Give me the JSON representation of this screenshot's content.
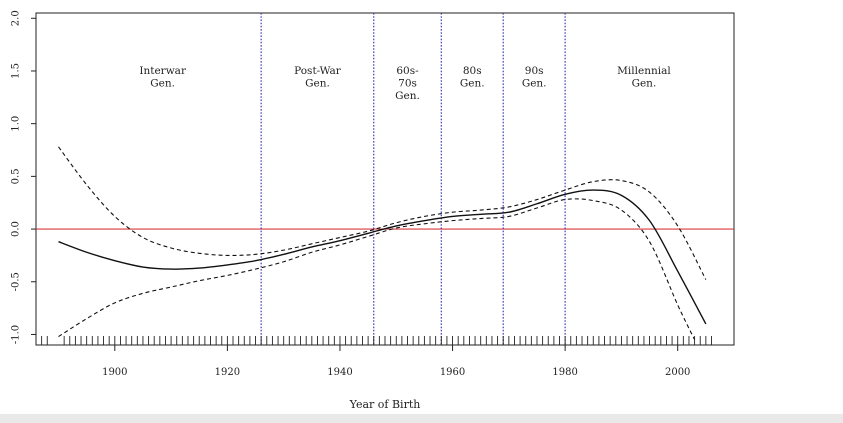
{
  "chart_data": {
    "type": "line",
    "xlabel": "Year of Birth",
    "ylabel": "",
    "xlim": [
      1886,
      2010
    ],
    "ylim": [
      -1.1,
      2.05
    ],
    "x_ticks": [
      1900,
      1920,
      1940,
      1960,
      1980,
      2000
    ],
    "y_ticks": [
      -1.0,
      -0.5,
      0.0,
      0.5,
      1.0,
      1.5,
      2.0
    ],
    "x_tick_labels": [
      "1900",
      "1920",
      "1940",
      "1960",
      "1980",
      "2000"
    ],
    "y_tick_labels": [
      "-1.0",
      "-0.5",
      "0.0",
      "0.5",
      "1.0",
      "1.5",
      "2.0"
    ],
    "reference_line": {
      "y": 0.0,
      "color": "#d93a3a"
    },
    "generation_boundaries": [
      1926,
      1946,
      1958,
      1969,
      1980
    ],
    "boundary_color": "#3f3fb8",
    "generations": [
      {
        "label": [
          "Interwar",
          "Gen."
        ],
        "x": 1908.5
      },
      {
        "label": [
          "Post-War",
          "Gen."
        ],
        "x": 1936
      },
      {
        "label": [
          "60s-",
          "70s",
          "Gen."
        ],
        "x": 1952
      },
      {
        "label": [
          "80s",
          "Gen."
        ],
        "x": 1963.5
      },
      {
        "label": [
          "90s",
          "Gen."
        ],
        "x": 1974.5
      },
      {
        "label": [
          "Millennial",
          "Gen."
        ],
        "x": 1994
      }
    ],
    "series": [
      {
        "style": "solid",
        "x": [
          1890,
          1895,
          1900,
          1905,
          1910,
          1915,
          1920,
          1925,
          1930,
          1935,
          1940,
          1945,
          1950,
          1955,
          1960,
          1965,
          1970,
          1975,
          1980,
          1985,
          1990,
          1995,
          2000,
          2005
        ],
        "y": [
          -0.12,
          -0.22,
          -0.3,
          -0.36,
          -0.38,
          -0.37,
          -0.34,
          -0.3,
          -0.24,
          -0.17,
          -0.11,
          -0.04,
          0.03,
          0.08,
          0.12,
          0.14,
          0.16,
          0.24,
          0.33,
          0.37,
          0.32,
          0.08,
          -0.4,
          -0.9
        ]
      },
      {
        "style": "dashed",
        "x": [
          1890,
          1895,
          1900,
          1905,
          1910,
          1915,
          1920,
          1925,
          1930,
          1935,
          1940,
          1945,
          1950,
          1955,
          1960,
          1965,
          1970,
          1975,
          1980,
          1985,
          1990,
          1995,
          2000,
          2005
        ],
        "y": [
          0.78,
          0.42,
          0.12,
          -0.08,
          -0.18,
          -0.23,
          -0.25,
          -0.24,
          -0.2,
          -0.14,
          -0.08,
          -0.02,
          0.06,
          0.12,
          0.16,
          0.18,
          0.21,
          0.28,
          0.37,
          0.45,
          0.46,
          0.35,
          0.03,
          -0.48
        ]
      },
      {
        "style": "dashed",
        "x": [
          1890,
          1895,
          1900,
          1905,
          1910,
          1915,
          1920,
          1925,
          1930,
          1935,
          1940,
          1945,
          1950,
          1955,
          1960,
          1965,
          1970,
          1975,
          1980,
          1985,
          1990,
          1995,
          2000,
          2003
        ],
        "y": [
          -1.02,
          -0.85,
          -0.7,
          -0.61,
          -0.55,
          -0.49,
          -0.44,
          -0.38,
          -0.31,
          -0.22,
          -0.15,
          -0.07,
          0.01,
          0.05,
          0.08,
          0.1,
          0.12,
          0.2,
          0.28,
          0.27,
          0.18,
          -0.12,
          -0.72,
          -1.05
        ]
      }
    ],
    "rug": true
  }
}
